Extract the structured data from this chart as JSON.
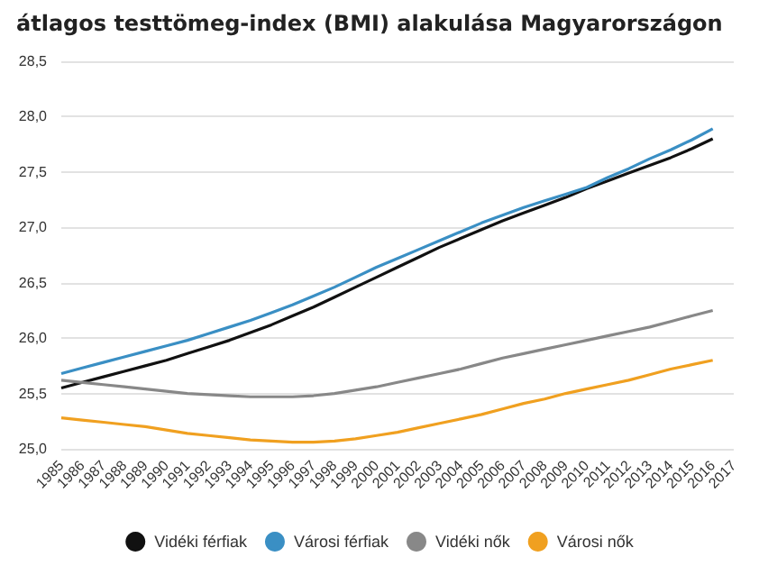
{
  "chart_data": {
    "type": "line",
    "title": "átlagos testtömeg-index (BMI) alakulása Magyarországon",
    "categories": [
      "1985",
      "1986",
      "1987",
      "1988",
      "1989",
      "1990",
      "1991",
      "1992",
      "1993",
      "1994",
      "1995",
      "1996",
      "1997",
      "1998",
      "1999",
      "2000",
      "2001",
      "2002",
      "2003",
      "2004",
      "2005",
      "2006",
      "2007",
      "2008",
      "2009",
      "2010",
      "2011",
      "2012",
      "2013",
      "2014",
      "2015",
      "2016",
      "2017"
    ],
    "series": [
      {
        "name": "Vidéki férfiak",
        "color": "#111111",
        "values": [
          25.55,
          25.6,
          25.65,
          25.7,
          25.75,
          25.8,
          25.86,
          25.92,
          25.98,
          26.05,
          26.12,
          26.2,
          26.28,
          26.37,
          26.46,
          26.55,
          26.64,
          26.73,
          26.82,
          26.9,
          26.98,
          27.06,
          27.13,
          27.2,
          27.27,
          27.35,
          27.42,
          27.49,
          27.56,
          27.63,
          27.71,
          27.8,
          null
        ]
      },
      {
        "name": "Városi férfiak",
        "color": "#3a8fc4",
        "values": [
          25.68,
          25.73,
          25.78,
          25.83,
          25.88,
          25.93,
          25.98,
          26.04,
          26.1,
          26.16,
          26.23,
          26.3,
          26.38,
          26.46,
          26.55,
          26.64,
          26.72,
          26.8,
          26.88,
          26.96,
          27.04,
          27.11,
          27.18,
          27.24,
          27.3,
          27.36,
          27.45,
          27.53,
          27.62,
          27.7,
          27.79,
          27.89,
          null
        ]
      },
      {
        "name": "Vidéki nők",
        "color": "#888888",
        "values": [
          25.62,
          25.6,
          25.58,
          25.56,
          25.54,
          25.52,
          25.5,
          25.49,
          25.48,
          25.47,
          25.47,
          25.47,
          25.48,
          25.5,
          25.53,
          25.56,
          25.6,
          25.64,
          25.68,
          25.72,
          25.77,
          25.82,
          25.86,
          25.9,
          25.94,
          25.98,
          26.02,
          26.06,
          26.1,
          26.15,
          26.2,
          26.25,
          null
        ]
      },
      {
        "name": "Városi nők",
        "color": "#f0a020",
        "values": [
          25.28,
          25.26,
          25.24,
          25.22,
          25.2,
          25.17,
          25.14,
          25.12,
          25.1,
          25.08,
          25.07,
          25.06,
          25.06,
          25.07,
          25.09,
          25.12,
          25.15,
          25.19,
          25.23,
          25.27,
          25.31,
          25.36,
          25.41,
          25.45,
          25.5,
          25.54,
          25.58,
          25.62,
          25.67,
          25.72,
          25.76,
          25.8,
          null
        ]
      }
    ],
    "ylim": [
      25,
      28.5
    ],
    "yticks": [
      {
        "value": 25,
        "label": "25,0"
      },
      {
        "value": 25.5,
        "label": "25,5"
      },
      {
        "value": 26,
        "label": "26,0"
      },
      {
        "value": 26.5,
        "label": "26,5"
      },
      {
        "value": 27,
        "label": "27,0"
      },
      {
        "value": 27.5,
        "label": "27,5"
      },
      {
        "value": 28,
        "label": "28,0"
      },
      {
        "value": 28.5,
        "label": "28,5"
      }
    ],
    "grid": "y",
    "legend": "bottom",
    "marker": "none",
    "line_style": "solid"
  }
}
